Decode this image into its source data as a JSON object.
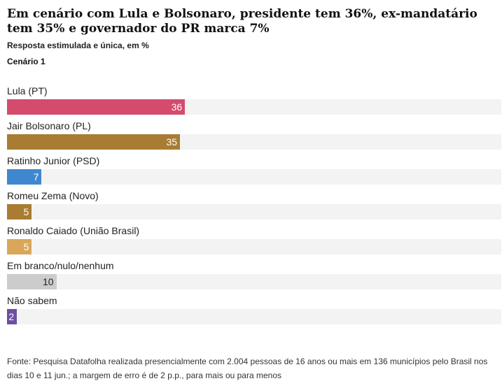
{
  "title": "Em cenário com Lula e Bolsonaro, presidente tem 36%, ex-mandatário tem 35% e governador do PR marca 7%",
  "subtitle": "Resposta estimulada e única, em %",
  "scenario": "Cenário 1",
  "source": "Fonte: Pesquisa Datafolha realizada presencialmente com 2.004 pessoas de 16 anos ou mais em 136 municípios pelo Brasil nos dias 10 e 11 jun.; a margem de erro é de 2 p.p., para mais ou para menos",
  "chart_data": {
    "type": "bar",
    "orientation": "horizontal",
    "xlim": [
      0,
      100
    ],
    "categories": [
      "Lula (PT)",
      "Jair Bolsonaro (PL)",
      "Ratinho Junior (PSD)",
      "Romeu Zema (Novo)",
      "Ronaldo Caiado (União Brasil)",
      "Em branco/nulo/nenhum",
      "Não sabem"
    ],
    "values": [
      36,
      35,
      7,
      5,
      5,
      10,
      2
    ],
    "value_labels": [
      "36",
      "35",
      "7",
      "5",
      "5",
      "10",
      "2"
    ],
    "colors": [
      "#d44b6d",
      "#a87c33",
      "#3f88cf",
      "#a87c33",
      "#d9a75a",
      "#cccccc",
      "#6e4ea3"
    ],
    "value_label_colors": [
      "#ffffff",
      "#ffffff",
      "#ffffff",
      "#ffffff",
      "#ffffff",
      "#222222",
      "#ffffff"
    ],
    "track_color": "#f3f3f3"
  }
}
